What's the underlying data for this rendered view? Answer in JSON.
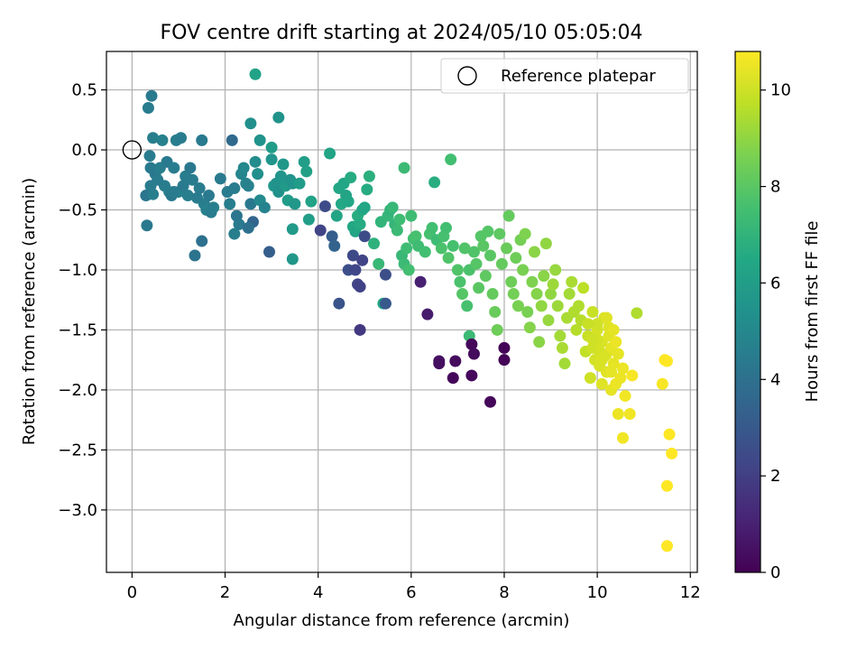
{
  "chart_data": {
    "type": "scatter",
    "title": "FOV centre drift starting at 2024/05/10 05:05:04",
    "xlabel": "Angular distance from reference (arcmin)",
    "ylabel": "Rotation from reference (arcmin)",
    "xlim": [
      -0.55,
      12.15
    ],
    "ylim": [
      -3.52,
      0.82
    ],
    "xticks": [
      0,
      2,
      4,
      6,
      8,
      10,
      12
    ],
    "yticks": [
      0.5,
      0.0,
      -0.5,
      -1.0,
      -1.5,
      -2.0,
      -2.5,
      -3.0
    ],
    "ytick_labels": [
      "0.5",
      "0.0",
      "−0.5",
      "−1.0",
      "−1.5",
      "−2.0",
      "−2.5",
      "−3.0"
    ],
    "grid": true,
    "legend": {
      "placement": "top-right",
      "entries": [
        "Reference platepar"
      ]
    },
    "reference_point": {
      "x": 0.0,
      "y": 0.0
    },
    "colorbar": {
      "label": "Hours from first FF file",
      "colormap": "viridis",
      "range": [
        0,
        10.8
      ],
      "ticks": [
        0,
        2,
        4,
        6,
        8,
        10
      ]
    },
    "points_columns": [
      "x",
      "y",
      "hours"
    ],
    "points": [
      [
        0.3,
        -0.38,
        4.2
      ],
      [
        0.32,
        -0.63,
        4.3
      ],
      [
        0.35,
        0.35,
        4.5
      ],
      [
        0.42,
        0.45,
        4.4
      ],
      [
        0.45,
        0.1,
        4.6
      ],
      [
        0.38,
        -0.05,
        4.5
      ],
      [
        0.4,
        -0.15,
        4.4
      ],
      [
        0.5,
        -0.2,
        4.3
      ],
      [
        0.55,
        -0.25,
        4.5
      ],
      [
        0.6,
        -0.15,
        4.6
      ],
      [
        0.65,
        0.08,
        4.7
      ],
      [
        0.7,
        -0.3,
        4.5
      ],
      [
        0.75,
        -0.1,
        4.4
      ],
      [
        0.8,
        -0.35,
        4.6
      ],
      [
        0.85,
        -0.38,
        4.3
      ],
      [
        0.9,
        -0.15,
        4.5
      ],
      [
        0.95,
        0.08,
        4.6
      ],
      [
        1.0,
        -0.35,
        4.7
      ],
      [
        1.05,
        0.1,
        4.5
      ],
      [
        1.1,
        -0.3,
        4.4
      ],
      [
        1.15,
        -0.22,
        4.5
      ],
      [
        1.2,
        -0.38,
        4.6
      ],
      [
        1.25,
        -0.15,
        4.3
      ],
      [
        1.3,
        -0.25,
        4.5
      ],
      [
        1.35,
        -0.88,
        4.1
      ],
      [
        1.45,
        -0.32,
        4.5
      ],
      [
        1.5,
        -0.76,
        4.0
      ],
      [
        1.55,
        -0.45,
        4.6
      ],
      [
        1.6,
        -0.5,
        4.7
      ],
      [
        1.65,
        -0.38,
        4.4
      ],
      [
        0.4,
        -0.3,
        4.5
      ],
      [
        0.45,
        -0.37,
        4.6
      ],
      [
        0.9,
        -0.35,
        4.5
      ],
      [
        1.5,
        0.08,
        4.4
      ],
      [
        1.4,
        -0.4,
        4.5
      ],
      [
        1.7,
        -0.52,
        4.5
      ],
      [
        1.75,
        -0.48,
        4.6
      ],
      [
        1.9,
        -0.24,
        4.4
      ],
      [
        2.05,
        -0.35,
        4.5
      ],
      [
        2.1,
        -0.45,
        4.6
      ],
      [
        2.15,
        0.08,
        3.7
      ],
      [
        2.2,
        -0.32,
        4.5
      ],
      [
        2.25,
        -0.55,
        4.2
      ],
      [
        2.3,
        -0.62,
        4.4
      ],
      [
        2.2,
        -0.7,
        4.6
      ],
      [
        2.35,
        -0.2,
        4.9
      ],
      [
        2.4,
        -0.15,
        5.0
      ],
      [
        2.45,
        -0.28,
        4.8
      ],
      [
        2.5,
        -0.3,
        4.7
      ],
      [
        2.55,
        -0.45,
        4.3
      ],
      [
        2.6,
        -0.6,
        3.5
      ],
      [
        2.5,
        -0.65,
        4.0
      ],
      [
        2.65,
        -0.1,
        5.2
      ],
      [
        2.7,
        -0.2,
        5.3
      ],
      [
        2.75,
        -0.42,
        5.1
      ],
      [
        2.55,
        0.22,
        5.3
      ],
      [
        2.65,
        0.63,
        6.2
      ],
      [
        2.75,
        0.08,
        5.5
      ],
      [
        2.85,
        -0.48,
        4.8
      ],
      [
        2.95,
        -0.85,
        3.2
      ],
      [
        3.0,
        -0.08,
        5.6
      ],
      [
        3.05,
        -0.3,
        5.7
      ],
      [
        3.1,
        -0.28,
        5.5
      ],
      [
        3.15,
        -0.35,
        5.4
      ],
      [
        3.2,
        -0.22,
        5.6
      ],
      [
        3.25,
        -0.12,
        5.7
      ],
      [
        3.3,
        -0.3,
        5.8
      ],
      [
        3.35,
        -0.42,
        5.9
      ],
      [
        3.4,
        -0.25,
        5.5
      ],
      [
        3.45,
        -0.28,
        5.6
      ],
      [
        3.5,
        -0.45,
        5.7
      ],
      [
        3.45,
        -0.66,
        5.8
      ],
      [
        3.45,
        -0.91,
        5.7
      ],
      [
        3.6,
        -0.28,
        5.9
      ],
      [
        3.7,
        -0.1,
        6.0
      ],
      [
        3.75,
        -0.18,
        6.1
      ],
      [
        3.8,
        -0.58,
        6.0
      ],
      [
        3.85,
        -0.43,
        6.2
      ],
      [
        3.0,
        0.02,
        5.9
      ],
      [
        3.15,
        0.27,
        5.5
      ],
      [
        4.05,
        -0.67,
        2.2
      ],
      [
        4.15,
        -0.47,
        2.5
      ],
      [
        4.25,
        -0.03,
        6.3
      ],
      [
        4.3,
        -0.72,
        3.2
      ],
      [
        4.35,
        -0.8,
        3.4
      ],
      [
        4.4,
        -0.55,
        6.3
      ],
      [
        4.45,
        -0.32,
        6.4
      ],
      [
        4.5,
        -0.45,
        6.5
      ],
      [
        4.55,
        -0.28,
        6.4
      ],
      [
        4.6,
        -0.38,
        6.3
      ],
      [
        4.65,
        -0.43,
        6.4
      ],
      [
        4.7,
        -0.23,
        6.6
      ],
      [
        4.75,
        -0.64,
        6.5
      ],
      [
        4.8,
        -0.68,
        6.3
      ],
      [
        4.85,
        -0.55,
        6.7
      ],
      [
        4.9,
        -0.62,
        6.6
      ],
      [
        4.95,
        -0.5,
        6.5
      ],
      [
        5.0,
        -0.48,
        6.4
      ],
      [
        4.45,
        -1.28,
        2.8
      ],
      [
        4.65,
        -1.0,
        2.6
      ],
      [
        4.75,
        -0.88,
        2.4
      ],
      [
        4.8,
        -1.0,
        2.3
      ],
      [
        4.85,
        -1.12,
        2.2
      ],
      [
        4.9,
        -1.14,
        2.1
      ],
      [
        4.9,
        -1.5,
        1.8
      ],
      [
        4.95,
        -0.92,
        2.2
      ],
      [
        5.0,
        -0.72,
        2.5
      ],
      [
        5.05,
        -0.33,
        6.6
      ],
      [
        5.1,
        -0.22,
        6.8
      ],
      [
        5.2,
        -0.78,
        6.9
      ],
      [
        5.3,
        -0.95,
        7.2
      ],
      [
        5.35,
        -0.6,
        7.0
      ],
      [
        5.4,
        -1.28,
        6.4
      ],
      [
        5.45,
        -1.28,
        3.0
      ],
      [
        5.45,
        -1.04,
        2.6
      ],
      [
        5.5,
        -0.55,
        7.1
      ],
      [
        5.55,
        -0.5,
        7.0
      ],
      [
        5.6,
        -0.48,
        7.2
      ],
      [
        5.65,
        -0.62,
        7.1
      ],
      [
        5.7,
        -0.67,
        7.3
      ],
      [
        5.75,
        -0.58,
        7.4
      ],
      [
        5.8,
        -0.88,
        7.2
      ],
      [
        5.85,
        -0.95,
        7.3
      ],
      [
        5.9,
        -0.82,
        7.4
      ],
      [
        5.95,
        -1.0,
        7.5
      ],
      [
        6.0,
        -0.55,
        7.4
      ],
      [
        6.05,
        -0.74,
        7.5
      ],
      [
        6.1,
        -0.72,
        7.6
      ],
      [
        6.15,
        -0.8,
        7.4
      ],
      [
        5.85,
        -0.15,
        7.3
      ],
      [
        6.2,
        -1.1,
        1.0
      ],
      [
        6.35,
        -1.37,
        0.8
      ],
      [
        6.3,
        -0.85,
        7.5
      ],
      [
        6.4,
        -0.7,
        7.6
      ],
      [
        6.45,
        -0.65,
        7.5
      ],
      [
        6.5,
        -0.27,
        6.7
      ],
      [
        6.55,
        -0.75,
        7.4
      ],
      [
        6.6,
        -1.76,
        0.5
      ],
      [
        6.6,
        -1.78,
        0.4
      ],
      [
        6.65,
        -0.82,
        7.7
      ],
      [
        6.7,
        -0.72,
        7.6
      ],
      [
        6.75,
        -0.65,
        7.5
      ],
      [
        6.8,
        -0.9,
        7.8
      ],
      [
        6.85,
        -0.08,
        7.5
      ],
      [
        6.9,
        -0.8,
        7.6
      ],
      [
        6.9,
        -1.9,
        0.2
      ],
      [
        6.95,
        -1.76,
        0.3
      ],
      [
        7.0,
        -1.0,
        7.8
      ],
      [
        7.05,
        -1.1,
        7.7
      ],
      [
        7.1,
        -1.2,
        7.9
      ],
      [
        7.15,
        -0.82,
        7.8
      ],
      [
        7.2,
        -1.3,
        7.6
      ],
      [
        7.25,
        -1.0,
        7.7
      ],
      [
        7.25,
        -1.55,
        7.3
      ],
      [
        7.3,
        -1.62,
        0.2
      ],
      [
        7.3,
        -1.88,
        0.2
      ],
      [
        7.35,
        -1.7,
        0.3
      ],
      [
        7.35,
        -0.85,
        7.8
      ],
      [
        7.4,
        -0.95,
        7.9
      ],
      [
        7.45,
        -1.15,
        8.0
      ],
      [
        7.5,
        -0.72,
        7.9
      ],
      [
        7.55,
        -0.8,
        8.0
      ],
      [
        7.6,
        -1.05,
        8.1
      ],
      [
        7.65,
        -0.68,
        7.9
      ],
      [
        7.7,
        -0.88,
        8.0
      ],
      [
        7.7,
        -2.1,
        0.2
      ],
      [
        7.75,
        -1.2,
        8.2
      ],
      [
        7.8,
        -1.35,
        8.3
      ],
      [
        7.85,
        -1.5,
        8.4
      ],
      [
        7.9,
        -0.7,
        8.1
      ],
      [
        7.95,
        -0.95,
        8.2
      ],
      [
        8.0,
        -1.65,
        0.1
      ],
      [
        8.0,
        -1.75,
        0.1
      ],
      [
        8.05,
        -0.82,
        8.3
      ],
      [
        8.1,
        -0.55,
        8.2
      ],
      [
        8.15,
        -1.1,
        8.4
      ],
      [
        8.2,
        -1.2,
        8.5
      ],
      [
        8.25,
        -0.9,
        8.4
      ],
      [
        8.3,
        -1.3,
        8.6
      ],
      [
        8.35,
        -0.75,
        8.5
      ],
      [
        8.4,
        -1.0,
        8.6
      ],
      [
        8.45,
        -0.7,
        8.7
      ],
      [
        8.5,
        -1.35,
        8.6
      ],
      [
        8.55,
        -1.48,
        8.8
      ],
      [
        8.6,
        -1.1,
        8.7
      ],
      [
        8.65,
        -0.85,
        8.9
      ],
      [
        8.7,
        -1.2,
        8.8
      ],
      [
        8.75,
        -1.6,
        8.9
      ],
      [
        8.8,
        -1.3,
        9.0
      ],
      [
        8.85,
        -1.05,
        8.9
      ],
      [
        8.9,
        -0.78,
        9.0
      ],
      [
        8.95,
        -1.42,
        9.1
      ],
      [
        9.0,
        -1.2,
        9.0
      ],
      [
        9.05,
        -1.12,
        9.2
      ],
      [
        9.1,
        -1.0,
        9.1
      ],
      [
        9.15,
        -1.3,
        9.2
      ],
      [
        9.2,
        -1.55,
        9.3
      ],
      [
        9.25,
        -1.65,
        9.4
      ],
      [
        9.3,
        -1.78,
        9.3
      ],
      [
        9.35,
        -1.4,
        9.4
      ],
      [
        9.4,
        -1.2,
        9.3
      ],
      [
        9.45,
        -1.1,
        9.4
      ],
      [
        9.5,
        -1.35,
        9.5
      ],
      [
        9.55,
        -1.5,
        9.6
      ],
      [
        9.6,
        -1.3,
        9.5
      ],
      [
        9.65,
        -1.42,
        9.6
      ],
      [
        9.7,
        -1.15,
        9.7
      ],
      [
        9.75,
        -1.68,
        9.8
      ],
      [
        9.8,
        -1.55,
        9.9
      ],
      [
        9.85,
        -1.9,
        10.0
      ],
      [
        9.9,
        -1.65,
        10.0
      ],
      [
        9.95,
        -1.75,
        10.1
      ],
      [
        10.0,
        -1.5,
        10.1
      ],
      [
        10.05,
        -1.8,
        10.2
      ],
      [
        10.1,
        -1.6,
        10.2
      ],
      [
        10.1,
        -1.95,
        10.3
      ],
      [
        10.15,
        -1.4,
        10.2
      ],
      [
        10.2,
        -1.7,
        10.3
      ],
      [
        10.2,
        -1.85,
        10.3
      ],
      [
        10.25,
        -1.55,
        10.3
      ],
      [
        10.3,
        -1.65,
        10.4
      ],
      [
        10.3,
        -2.0,
        10.4
      ],
      [
        10.35,
        -1.78,
        10.4
      ],
      [
        10.4,
        -1.6,
        10.5
      ],
      [
        10.45,
        -2.2,
        10.5
      ],
      [
        10.5,
        -1.9,
        10.5
      ],
      [
        10.55,
        -2.4,
        10.6
      ],
      [
        10.6,
        -2.05,
        10.6
      ],
      [
        10.7,
        -2.2,
        10.6
      ],
      [
        10.75,
        -1.88,
        10.7
      ],
      [
        9.9,
        -1.35,
        9.9
      ],
      [
        10.0,
        -1.45,
        10.0
      ],
      [
        10.05,
        -1.68,
        10.1
      ],
      [
        10.15,
        -1.72,
        10.2
      ],
      [
        10.25,
        -1.48,
        10.3
      ],
      [
        10.35,
        -1.5,
        10.4
      ],
      [
        10.45,
        -1.7,
        10.4
      ],
      [
        10.55,
        -1.82,
        10.5
      ],
      [
        10.0,
        -1.58,
        10.1
      ],
      [
        10.1,
        -1.75,
        10.2
      ],
      [
        10.2,
        -1.4,
        10.3
      ],
      [
        10.3,
        -1.85,
        10.4
      ],
      [
        9.8,
        -1.45,
        9.9
      ],
      [
        9.9,
        -1.58,
        10.0
      ],
      [
        10.4,
        -1.95,
        10.5
      ],
      [
        10.85,
        -1.36,
        9.5
      ],
      [
        11.4,
        -1.95,
        10.7
      ],
      [
        11.45,
        -1.75,
        10.8
      ],
      [
        11.5,
        -1.76,
        10.8
      ],
      [
        11.5,
        -2.8,
        10.8
      ],
      [
        11.55,
        -2.37,
        10.8
      ],
      [
        11.6,
        -2.53,
        10.8
      ],
      [
        11.5,
        -3.3,
        10.8
      ]
    ]
  }
}
